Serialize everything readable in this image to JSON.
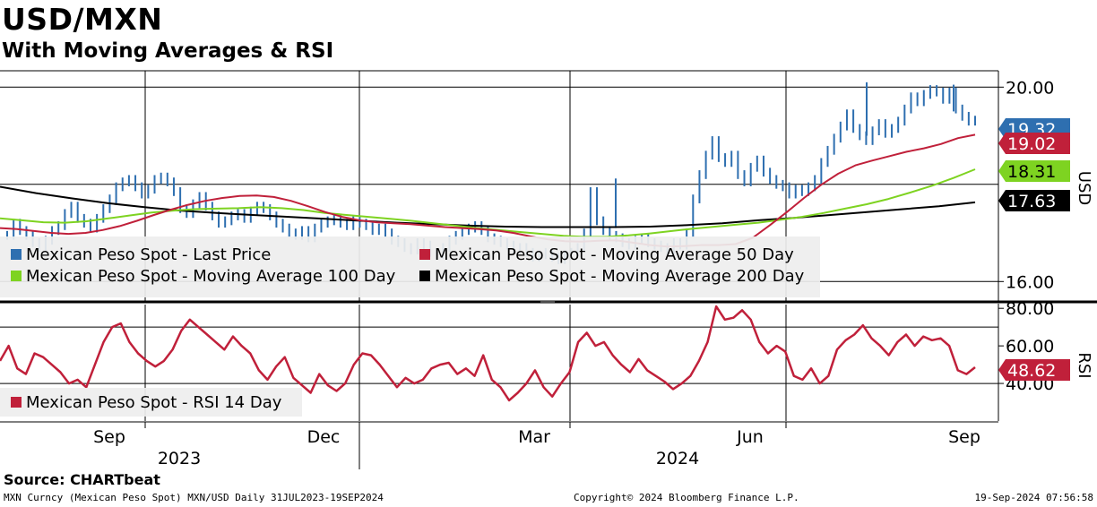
{
  "title": "USD/MXN",
  "subtitle": "With Moving Averages & RSI",
  "source": "Source: CHARTbeat",
  "footer": {
    "left": "MXN Curncy (Mexican Peso Spot) MXN/USD  Daily 31JUL2023-19SEP2024",
    "center": "Copyright© 2024 Bloomberg Finance L.P.",
    "right": "19-Sep-2024 07:56:58"
  },
  "colors": {
    "price": "#2e6fb0",
    "ma50": "#c0203a",
    "ma100": "#7ed321",
    "ma200": "#000000",
    "rsi": "#c0203a",
    "grid": "#000000"
  },
  "chart_data": [
    {
      "type": "line",
      "panel": "price",
      "ylabel": "USD",
      "ylim": [
        15.6,
        20.3
      ],
      "yticks": [
        "20.00",
        "16.00"
      ],
      "ytick_values": [
        20.0,
        16.0
      ],
      "x_axis": {
        "months": [
          "Sep",
          "Dec",
          "Mar",
          "Jun",
          "Sep"
        ],
        "years": [
          "2023",
          "2024"
        ]
      },
      "legend": [
        {
          "label": "Mexican Peso Spot - Last Price",
          "color": "#2e6fb0"
        },
        {
          "label": "Mexican Peso Spot - Moving Average 50 Day",
          "color": "#c0203a"
        },
        {
          "label": "Mexican Peso Spot - Moving Average 100 Day",
          "color": "#7ed321"
        },
        {
          "label": "Mexican Peso Spot - Moving Average 200 Day",
          "color": "#000000"
        }
      ],
      "series": [
        {
          "name": "Last Price",
          "style": "bars",
          "last": "19.32",
          "values": [
            16.95,
            17.2,
            17.05,
            16.95,
            16.8,
            16.7,
            16.85,
            17.05,
            17.15,
            17.4,
            17.55,
            17.3,
            17.2,
            17.1,
            17.3,
            17.5,
            17.7,
            17.95,
            18.05,
            18.1,
            17.95,
            17.8,
            17.9,
            18.1,
            18.15,
            18.05,
            17.85,
            17.5,
            17.4,
            17.6,
            17.75,
            17.55,
            17.35,
            17.2,
            17.25,
            17.35,
            17.4,
            17.3,
            17.45,
            17.55,
            17.5,
            17.35,
            17.2,
            17.1,
            17.0,
            16.95,
            17.05,
            16.9,
            17.1,
            17.2,
            17.25,
            17.3,
            17.2,
            17.15,
            17.25,
            17.2,
            17.15,
            17.05,
            17.1,
            17.0,
            16.85,
            16.8,
            16.7,
            16.65,
            16.8,
            16.75,
            16.6,
            16.55,
            16.7,
            16.85,
            16.95,
            17.05,
            17.1,
            17.15,
            17.05,
            16.9,
            16.85,
            16.8,
            16.75,
            16.65,
            16.7,
            16.6,
            16.5,
            16.55,
            16.6,
            16.5,
            16.45,
            16.55,
            16.6,
            16.7,
            17.0,
            17.85,
            17.25,
            17.05,
            16.95,
            16.9,
            16.8,
            16.75,
            16.85,
            16.9,
            16.8,
            16.75,
            16.7,
            16.65,
            16.8,
            16.75,
            17.0,
            17.7,
            18.2,
            18.6,
            18.9,
            18.55,
            18.45,
            18.6,
            18.2,
            18.05,
            18.35,
            18.5,
            18.25,
            18.1,
            18.0,
            17.95,
            17.8,
            17.9,
            17.85,
            17.95,
            18.1,
            18.45,
            18.7,
            18.95,
            19.2,
            19.45,
            19.15,
            19.0,
            18.9,
            19.1,
            19.25,
            19.05,
            19.15,
            19.3,
            19.55,
            19.8,
            19.7,
            19.85,
            19.95,
            19.9,
            19.75,
            19.9,
            19.55,
            19.4,
            19.3,
            19.32
          ]
        },
        {
          "name": "Moving Average 50 Day",
          "last": "19.02",
          "values": [
            17.1,
            17.08,
            17.04,
            17.0,
            16.98,
            17.0,
            17.06,
            17.14,
            17.25,
            17.37,
            17.48,
            17.58,
            17.66,
            17.72,
            17.76,
            17.77,
            17.74,
            17.66,
            17.55,
            17.43,
            17.33,
            17.26,
            17.22,
            17.2,
            17.18,
            17.15,
            17.12,
            17.1,
            17.08,
            17.05,
            17.0,
            16.93,
            16.87,
            16.83,
            16.82,
            16.84,
            16.85,
            16.8,
            16.75,
            16.72,
            16.73,
            16.75,
            16.75,
            16.77,
            16.9,
            17.16,
            17.43,
            17.72,
            17.99,
            18.22,
            18.39,
            18.49,
            18.58,
            18.67,
            18.74,
            18.83,
            18.95,
            19.02
          ]
        },
        {
          "name": "Moving Average 100 Day",
          "last": "18.31",
          "values": [
            17.3,
            17.26,
            17.22,
            17.21,
            17.24,
            17.3,
            17.36,
            17.42,
            17.46,
            17.49,
            17.5,
            17.51,
            17.53,
            17.51,
            17.47,
            17.41,
            17.37,
            17.33,
            17.29,
            17.25,
            17.2,
            17.15,
            17.1,
            17.06,
            17.02,
            16.98,
            16.94,
            16.92,
            16.92,
            16.95,
            16.99,
            17.04,
            17.09,
            17.13,
            17.17,
            17.21,
            17.27,
            17.33,
            17.41,
            17.5,
            17.59,
            17.7,
            17.83,
            17.97,
            18.13,
            18.31
          ]
        },
        {
          "name": "Moving Average 200 Day",
          "last": "17.63",
          "values": [
            17.95,
            17.82,
            17.71,
            17.61,
            17.53,
            17.46,
            17.41,
            17.37,
            17.33,
            17.29,
            17.25,
            17.21,
            17.18,
            17.15,
            17.13,
            17.12,
            17.12,
            17.12,
            17.13,
            17.16,
            17.2,
            17.26,
            17.31,
            17.37,
            17.43,
            17.49,
            17.55,
            17.63
          ]
        }
      ],
      "last_labels": [
        {
          "text": "19.32",
          "bg": "#2e6fb0",
          "fg": "#ffffff"
        },
        {
          "text": "19.02",
          "bg": "#c0203a",
          "fg": "#ffffff"
        },
        {
          "text": "18.31",
          "bg": "#7ed321",
          "fg": "#000000"
        },
        {
          "text": "17.63",
          "bg": "#000000",
          "fg": "#ffffff"
        }
      ]
    },
    {
      "type": "line",
      "panel": "rsi",
      "ylabel": "RSI",
      "ylim": [
        20,
        82
      ],
      "yticks": [
        "80.00",
        "60.00",
        "40.00"
      ],
      "ytick_values": [
        80,
        60,
        40
      ],
      "hlines": [
        70,
        40
      ],
      "legend": [
        {
          "label": "Mexican Peso Spot - RSI 14 Day",
          "color": "#c0203a"
        }
      ],
      "series": [
        {
          "name": "RSI 14 Day",
          "last": "48.62",
          "values": [
            52,
            60,
            48,
            45,
            56,
            54,
            50,
            46,
            40,
            42,
            38,
            50,
            62,
            70,
            72,
            62,
            56,
            52,
            49,
            52,
            58,
            68,
            74,
            70,
            66,
            62,
            58,
            65,
            60,
            56,
            47,
            42,
            49,
            54,
            43,
            39,
            35,
            45,
            39,
            36,
            40,
            50,
            56,
            55,
            50,
            44,
            38,
            43,
            40,
            42,
            48,
            50,
            51,
            45,
            48,
            44,
            55,
            42,
            38,
            31,
            35,
            40,
            47,
            38,
            33,
            40,
            46,
            62,
            67,
            60,
            62,
            55,
            50,
            46,
            53,
            47,
            44,
            41,
            37,
            40,
            44,
            52,
            62,
            81,
            74,
            75,
            79,
            74,
            62,
            56,
            60,
            57,
            44,
            42,
            48,
            40,
            44,
            58,
            63,
            66,
            71,
            64,
            60,
            55,
            62,
            66,
            60,
            65,
            63,
            64,
            60,
            47,
            45,
            48.62
          ]
        }
      ],
      "last_label": {
        "text": "48.62",
        "bg": "#c0203a",
        "fg": "#ffffff"
      }
    }
  ]
}
